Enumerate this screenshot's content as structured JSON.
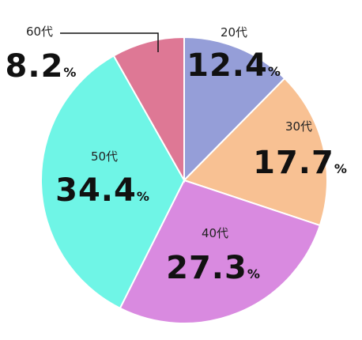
{
  "chart_data": {
    "type": "pie",
    "categories": [
      "20代",
      "30代",
      "40代",
      "50代",
      "60代"
    ],
    "values": [
      12.4,
      17.7,
      27.3,
      34.4,
      8.2
    ],
    "unit": "%",
    "colors": [
      "#959ed8",
      "#f8c193",
      "#d98ae0",
      "#6ff5e6",
      "#de7895"
    ]
  }
}
